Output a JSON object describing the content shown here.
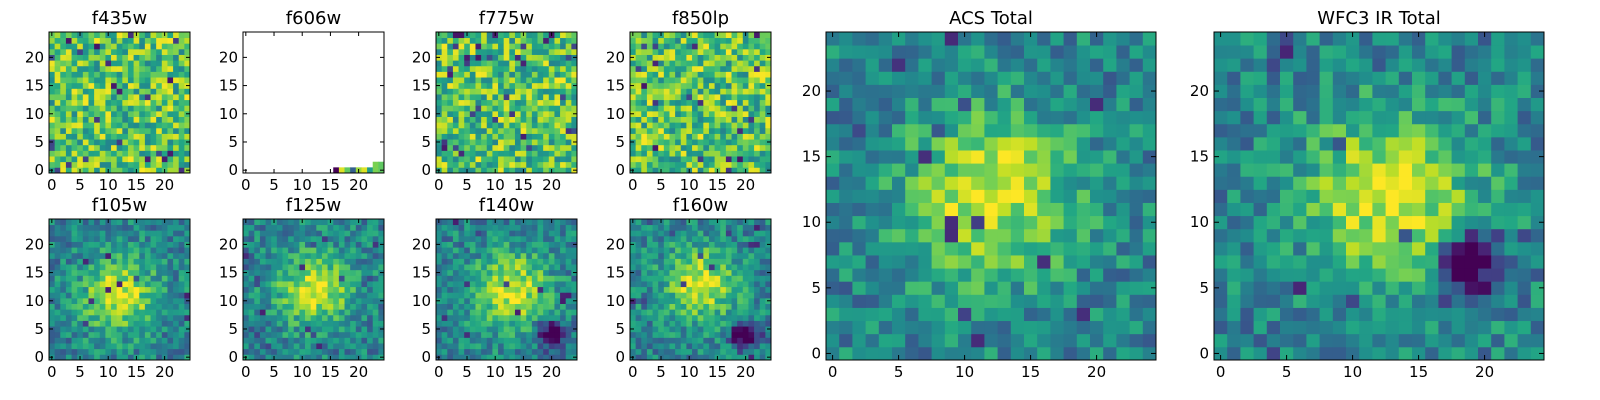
{
  "figure": {
    "panel_titles": [
      "f435w",
      "f606w",
      "f775w",
      "f850lp",
      "ACS Total",
      "WFC3 IR Total",
      "f105w",
      "f125w",
      "f140w",
      "f160w"
    ]
  },
  "chart_data": [
    {
      "type": "heatmap",
      "title": "f435w",
      "grid_size": 25,
      "colormap": "viridis",
      "xlim": [
        0,
        24
      ],
      "ylim": [
        0,
        24
      ],
      "x_ticks": [
        0,
        5,
        10,
        15,
        20
      ],
      "y_ticks": [
        0,
        5,
        10,
        15,
        20
      ],
      "pattern": "noise",
      "seed": 11
    },
    {
      "type": "heatmap",
      "title": "f606w",
      "grid_size": 25,
      "colormap": "viridis",
      "xlim": [
        0,
        24
      ],
      "ylim": [
        0,
        24
      ],
      "x_ticks": [
        0,
        5,
        10,
        15,
        20
      ],
      "y_ticks": [
        0,
        5,
        10,
        15,
        20
      ],
      "pattern": "mostly-empty",
      "seed": 0,
      "nonblank_cells": [
        {
          "x": 16,
          "y": 0,
          "value": 0.0
        },
        {
          "x": 17,
          "y": 0,
          "value": 0.95
        },
        {
          "x": 18,
          "y": 0,
          "value": 0.75
        },
        {
          "x": 19,
          "y": 0,
          "value": 0.3
        },
        {
          "x": 20,
          "y": 0,
          "value": 0.85
        },
        {
          "x": 21,
          "y": 0,
          "value": 0.95
        },
        {
          "x": 22,
          "y": 0,
          "value": 0.55
        },
        {
          "x": 23,
          "y": 0,
          "value": 0.8
        },
        {
          "x": 23,
          "y": 1,
          "value": 0.8
        },
        {
          "x": 24,
          "y": 0,
          "value": 0.75
        },
        {
          "x": 24,
          "y": 1,
          "value": 0.75
        }
      ]
    },
    {
      "type": "heatmap",
      "title": "f775w",
      "grid_size": 25,
      "colormap": "viridis",
      "xlim": [
        0,
        24
      ],
      "ylim": [
        0,
        24
      ],
      "x_ticks": [
        0,
        5,
        10,
        15,
        20
      ],
      "y_ticks": [
        0,
        5,
        10,
        15,
        20
      ],
      "pattern": "noise",
      "seed": 23
    },
    {
      "type": "heatmap",
      "title": "f850lp",
      "grid_size": 25,
      "colormap": "viridis",
      "xlim": [
        0,
        24
      ],
      "ylim": [
        0,
        24
      ],
      "x_ticks": [
        0,
        5,
        10,
        15,
        20
      ],
      "y_ticks": [
        0,
        5,
        10,
        15,
        20
      ],
      "pattern": "noise",
      "seed": 37
    },
    {
      "type": "heatmap",
      "title": "ACS Total",
      "grid_size": 25,
      "colormap": "viridis",
      "xlim": [
        0,
        24
      ],
      "ylim": [
        0,
        24
      ],
      "x_ticks": [
        0,
        5,
        10,
        15,
        20
      ],
      "y_ticks": [
        0,
        5,
        10,
        15,
        20
      ],
      "pattern": "source",
      "seed": 51,
      "source_center": [
        12,
        12
      ],
      "dark_region": null
    },
    {
      "type": "heatmap",
      "title": "WFC3 IR Total",
      "grid_size": 25,
      "colormap": "viridis",
      "xlim": [
        0,
        24
      ],
      "ylim": [
        0,
        24
      ],
      "x_ticks": [
        0,
        5,
        10,
        15,
        20
      ],
      "y_ticks": [
        0,
        5,
        10,
        15,
        20
      ],
      "pattern": "source",
      "seed": 67,
      "source_center": [
        13,
        12
      ],
      "dark_region": [
        19,
        7
      ]
    },
    {
      "type": "heatmap",
      "title": "f105w",
      "grid_size": 25,
      "colormap": "viridis",
      "xlim": [
        0,
        24
      ],
      "ylim": [
        0,
        24
      ],
      "x_ticks": [
        0,
        5,
        10,
        15,
        20
      ],
      "y_ticks": [
        0,
        5,
        10,
        15,
        20
      ],
      "pattern": "source",
      "seed": 79,
      "source_center": [
        12,
        11
      ],
      "dark_region": null
    },
    {
      "type": "heatmap",
      "title": "f125w",
      "grid_size": 25,
      "colormap": "viridis",
      "xlim": [
        0,
        24
      ],
      "ylim": [
        0,
        24
      ],
      "x_ticks": [
        0,
        5,
        10,
        15,
        20
      ],
      "y_ticks": [
        0,
        5,
        10,
        15,
        20
      ],
      "pattern": "source",
      "seed": 83,
      "source_center": [
        12,
        12
      ],
      "dark_region": null
    },
    {
      "type": "heatmap",
      "title": "f140w",
      "grid_size": 25,
      "colormap": "viridis",
      "xlim": [
        0,
        24
      ],
      "ylim": [
        0,
        24
      ],
      "x_ticks": [
        0,
        5,
        10,
        15,
        20
      ],
      "y_ticks": [
        0,
        5,
        10,
        15,
        20
      ],
      "pattern": "source",
      "seed": 97,
      "source_center": [
        13,
        12
      ],
      "dark_region": [
        20,
        4
      ]
    },
    {
      "type": "heatmap",
      "title": "f160w",
      "grid_size": 25,
      "colormap": "viridis",
      "xlim": [
        0,
        24
      ],
      "ylim": [
        0,
        24
      ],
      "x_ticks": [
        0,
        5,
        10,
        15,
        20
      ],
      "y_ticks": [
        0,
        5,
        10,
        15,
        20
      ],
      "pattern": "source",
      "seed": 101,
      "source_center": [
        12,
        13
      ],
      "dark_region": [
        20,
        4
      ]
    }
  ]
}
